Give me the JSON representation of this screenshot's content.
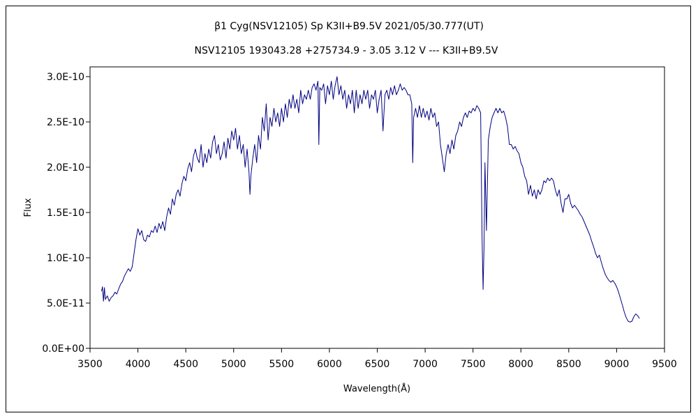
{
  "chart_data": {
    "type": "line",
    "title": "β1 Cyg(NSV12105)     Sp K3II+B9.5V   2021/05/30.777(UT)",
    "subtitle": "NSV12105 193043.28 +275734.9 - 3.05 3.12 V --- K3II+B9.5V",
    "xlabel": "Wavelength(Å)",
    "ylabel": "Flux",
    "xlim": [
      3500,
      9500
    ],
    "ylim": [
      0,
      3e-10
    ],
    "x_ticks": [
      "3500",
      "4000",
      "4500",
      "5000",
      "5500",
      "6000",
      "6500",
      "7000",
      "7500",
      "8000",
      "8500",
      "9000",
      "9500"
    ],
    "y_ticks": [
      "0.0E+00",
      "5.0E-11",
      "1.0E-10",
      "1.5E-10",
      "2.0E-10",
      "2.5E-10",
      "3.0E-10"
    ],
    "grid": false,
    "series": [
      {
        "color": "#000080",
        "points": [
          [
            3620,
            6.3e-11
          ],
          [
            3630,
            6.8e-11
          ],
          [
            3640,
            5.2e-11
          ],
          [
            3650,
            6.7e-11
          ],
          [
            3660,
            5.4e-11
          ],
          [
            3680,
            5.8e-11
          ],
          [
            3700,
            5.2e-11
          ],
          [
            3720,
            5.6e-11
          ],
          [
            3740,
            5.8e-11
          ],
          [
            3760,
            6.2e-11
          ],
          [
            3780,
            6e-11
          ],
          [
            3800,
            6.6e-11
          ],
          [
            3820,
            7.1e-11
          ],
          [
            3840,
            7.4e-11
          ],
          [
            3860,
            8e-11
          ],
          [
            3880,
            8.4e-11
          ],
          [
            3900,
            8.8e-11
          ],
          [
            3920,
            8.5e-11
          ],
          [
            3940,
            9e-11
          ],
          [
            3960,
            1.05e-10
          ],
          [
            3980,
            1.2e-10
          ],
          [
            4000,
            1.32e-10
          ],
          [
            4020,
            1.25e-10
          ],
          [
            4040,
            1.3e-10
          ],
          [
            4060,
            1.2e-10
          ],
          [
            4080,
            1.18e-10
          ],
          [
            4100,
            1.25e-10
          ],
          [
            4120,
            1.23e-10
          ],
          [
            4140,
            1.3e-10
          ],
          [
            4160,
            1.28e-10
          ],
          [
            4180,
            1.35e-10
          ],
          [
            4200,
            1.28e-10
          ],
          [
            4220,
            1.38e-10
          ],
          [
            4240,
            1.32e-10
          ],
          [
            4260,
            1.4e-10
          ],
          [
            4280,
            1.3e-10
          ],
          [
            4300,
            1.45e-10
          ],
          [
            4320,
            1.55e-10
          ],
          [
            4340,
            1.48e-10
          ],
          [
            4360,
            1.65e-10
          ],
          [
            4380,
            1.58e-10
          ],
          [
            4400,
            1.7e-10
          ],
          [
            4420,
            1.75e-10
          ],
          [
            4440,
            1.68e-10
          ],
          [
            4460,
            1.82e-10
          ],
          [
            4480,
            1.9e-10
          ],
          [
            4500,
            1.85e-10
          ],
          [
            4520,
            1.98e-10
          ],
          [
            4540,
            2.05e-10
          ],
          [
            4560,
            1.95e-10
          ],
          [
            4580,
            2.12e-10
          ],
          [
            4600,
            2.2e-10
          ],
          [
            4620,
            2.1e-10
          ],
          [
            4640,
            2.05e-10
          ],
          [
            4660,
            2.25e-10
          ],
          [
            4680,
            2e-10
          ],
          [
            4700,
            2.15e-10
          ],
          [
            4720,
            2.05e-10
          ],
          [
            4740,
            2.2e-10
          ],
          [
            4760,
            2.1e-10
          ],
          [
            4780,
            2.28e-10
          ],
          [
            4800,
            2.35e-10
          ],
          [
            4820,
            2.15e-10
          ],
          [
            4840,
            2.25e-10
          ],
          [
            4860,
            2.08e-10
          ],
          [
            4880,
            2.15e-10
          ],
          [
            4900,
            2.28e-10
          ],
          [
            4920,
            2.1e-10
          ],
          [
            4940,
            2.32e-10
          ],
          [
            4960,
            2.2e-10
          ],
          [
            4980,
            2.4e-10
          ],
          [
            5000,
            2.3e-10
          ],
          [
            5020,
            2.43e-10
          ],
          [
            5040,
            2.2e-10
          ],
          [
            5060,
            2.35e-10
          ],
          [
            5080,
            2.15e-10
          ],
          [
            5100,
            2.25e-10
          ],
          [
            5120,
            2e-10
          ],
          [
            5140,
            2.2e-10
          ],
          [
            5160,
            1.95e-10
          ],
          [
            5170,
            1.7e-10
          ],
          [
            5180,
            1.9e-10
          ],
          [
            5200,
            2.1e-10
          ],
          [
            5220,
            2.25e-10
          ],
          [
            5240,
            2.05e-10
          ],
          [
            5260,
            2.35e-10
          ],
          [
            5280,
            2.2e-10
          ],
          [
            5300,
            2.55e-10
          ],
          [
            5320,
            2.4e-10
          ],
          [
            5340,
            2.7e-10
          ],
          [
            5360,
            2.3e-10
          ],
          [
            5380,
            2.55e-10
          ],
          [
            5400,
            2.45e-10
          ],
          [
            5420,
            2.65e-10
          ],
          [
            5440,
            2.5e-10
          ],
          [
            5460,
            2.6e-10
          ],
          [
            5480,
            2.45e-10
          ],
          [
            5500,
            2.65e-10
          ],
          [
            5520,
            2.5e-10
          ],
          [
            5540,
            2.7e-10
          ],
          [
            5560,
            2.55e-10
          ],
          [
            5580,
            2.75e-10
          ],
          [
            5600,
            2.65e-10
          ],
          [
            5620,
            2.8e-10
          ],
          [
            5640,
            2.65e-10
          ],
          [
            5660,
            2.75e-10
          ],
          [
            5680,
            2.6e-10
          ],
          [
            5700,
            2.85e-10
          ],
          [
            5720,
            2.7e-10
          ],
          [
            5740,
            2.8e-10
          ],
          [
            5760,
            2.75e-10
          ],
          [
            5780,
            2.85e-10
          ],
          [
            5800,
            2.75e-10
          ],
          [
            5820,
            2.88e-10
          ],
          [
            5840,
            2.92e-10
          ],
          [
            5860,
            2.85e-10
          ],
          [
            5880,
            2.95e-10
          ],
          [
            5890,
            2.25e-10
          ],
          [
            5900,
            2.88e-10
          ],
          [
            5920,
            2.85e-10
          ],
          [
            5940,
            2.92e-10
          ],
          [
            5960,
            2.7e-10
          ],
          [
            5980,
            2.9e-10
          ],
          [
            6000,
            2.8e-10
          ],
          [
            6020,
            2.95e-10
          ],
          [
            6040,
            2.75e-10
          ],
          [
            6060,
            2.9e-10
          ],
          [
            6080,
            3e-10
          ],
          [
            6100,
            2.8e-10
          ],
          [
            6120,
            2.9e-10
          ],
          [
            6140,
            2.75e-10
          ],
          [
            6160,
            2.85e-10
          ],
          [
            6180,
            2.65e-10
          ],
          [
            6200,
            2.8e-10
          ],
          [
            6220,
            2.7e-10
          ],
          [
            6240,
            2.85e-10
          ],
          [
            6260,
            2.6e-10
          ],
          [
            6280,
            2.85e-10
          ],
          [
            6300,
            2.65e-10
          ],
          [
            6320,
            2.8e-10
          ],
          [
            6340,
            2.7e-10
          ],
          [
            6360,
            2.85e-10
          ],
          [
            6380,
            2.75e-10
          ],
          [
            6400,
            2.85e-10
          ],
          [
            6420,
            2.65e-10
          ],
          [
            6440,
            2.8e-10
          ],
          [
            6460,
            2.75e-10
          ],
          [
            6480,
            2.85e-10
          ],
          [
            6500,
            2.6e-10
          ],
          [
            6520,
            2.75e-10
          ],
          [
            6540,
            2.85e-10
          ],
          [
            6560,
            2.4e-10
          ],
          [
            6580,
            2.8e-10
          ],
          [
            6600,
            2.85e-10
          ],
          [
            6620,
            2.75e-10
          ],
          [
            6640,
            2.88e-10
          ],
          [
            6660,
            2.8e-10
          ],
          [
            6680,
            2.9e-10
          ],
          [
            6700,
            2.8e-10
          ],
          [
            6720,
            2.85e-10
          ],
          [
            6740,
            2.92e-10
          ],
          [
            6760,
            2.85e-10
          ],
          [
            6780,
            2.88e-10
          ],
          [
            6800,
            2.85e-10
          ],
          [
            6820,
            2.8e-10
          ],
          [
            6840,
            2.8e-10
          ],
          [
            6860,
            2.7e-10
          ],
          [
            6870,
            2.05e-10
          ],
          [
            6880,
            2.55e-10
          ],
          [
            6900,
            2.65e-10
          ],
          [
            6920,
            2.55e-10
          ],
          [
            6940,
            2.68e-10
          ],
          [
            6960,
            2.55e-10
          ],
          [
            6980,
            2.65e-10
          ],
          [
            7000,
            2.55e-10
          ],
          [
            7020,
            2.62e-10
          ],
          [
            7040,
            2.52e-10
          ],
          [
            7060,
            2.65e-10
          ],
          [
            7080,
            2.55e-10
          ],
          [
            7100,
            2.6e-10
          ],
          [
            7120,
            2.45e-10
          ],
          [
            7140,
            2.5e-10
          ],
          [
            7160,
            2.25e-10
          ],
          [
            7180,
            2.1e-10
          ],
          [
            7200,
            1.95e-10
          ],
          [
            7220,
            2.15e-10
          ],
          [
            7240,
            2.25e-10
          ],
          [
            7260,
            2.15e-10
          ],
          [
            7280,
            2.3e-10
          ],
          [
            7300,
            2.2e-10
          ],
          [
            7320,
            2.35e-10
          ],
          [
            7340,
            2.4e-10
          ],
          [
            7360,
            2.5e-10
          ],
          [
            7380,
            2.45e-10
          ],
          [
            7400,
            2.55e-10
          ],
          [
            7420,
            2.6e-10
          ],
          [
            7440,
            2.55e-10
          ],
          [
            7460,
            2.62e-10
          ],
          [
            7480,
            2.6e-10
          ],
          [
            7500,
            2.65e-10
          ],
          [
            7520,
            2.62e-10
          ],
          [
            7540,
            2.68e-10
          ],
          [
            7560,
            2.65e-10
          ],
          [
            7580,
            2.6e-10
          ],
          [
            7595,
            1.2e-10
          ],
          [
            7605,
            6.5e-11
          ],
          [
            7615,
            1.1e-10
          ],
          [
            7625,
            2.05e-10
          ],
          [
            7640,
            1.3e-10
          ],
          [
            7660,
            2.3e-10
          ],
          [
            7680,
            2.45e-10
          ],
          [
            7700,
            2.55e-10
          ],
          [
            7720,
            2.6e-10
          ],
          [
            7740,
            2.65e-10
          ],
          [
            7760,
            2.6e-10
          ],
          [
            7780,
            2.65e-10
          ],
          [
            7800,
            2.6e-10
          ],
          [
            7820,
            2.62e-10
          ],
          [
            7840,
            2.55e-10
          ],
          [
            7860,
            2.45e-10
          ],
          [
            7880,
            2.25e-10
          ],
          [
            7900,
            2.25e-10
          ],
          [
            7920,
            2.2e-10
          ],
          [
            7940,
            2.23e-10
          ],
          [
            7960,
            2.18e-10
          ],
          [
            7980,
            2.15e-10
          ],
          [
            8000,
            2.05e-10
          ],
          [
            8020,
            2e-10
          ],
          [
            8040,
            1.9e-10
          ],
          [
            8060,
            1.85e-10
          ],
          [
            8080,
            1.7e-10
          ],
          [
            8100,
            1.8e-10
          ],
          [
            8120,
            1.68e-10
          ],
          [
            8140,
            1.75e-10
          ],
          [
            8160,
            1.65e-10
          ],
          [
            8180,
            1.75e-10
          ],
          [
            8200,
            1.7e-10
          ],
          [
            8220,
            1.75e-10
          ],
          [
            8240,
            1.85e-10
          ],
          [
            8260,
            1.83e-10
          ],
          [
            8280,
            1.88e-10
          ],
          [
            8300,
            1.85e-10
          ],
          [
            8320,
            1.88e-10
          ],
          [
            8340,
            1.85e-10
          ],
          [
            8360,
            1.75e-10
          ],
          [
            8380,
            1.68e-10
          ],
          [
            8400,
            1.75e-10
          ],
          [
            8420,
            1.6e-10
          ],
          [
            8440,
            1.5e-10
          ],
          [
            8460,
            1.65e-10
          ],
          [
            8480,
            1.65e-10
          ],
          [
            8500,
            1.7e-10
          ],
          [
            8520,
            1.6e-10
          ],
          [
            8540,
            1.55e-10
          ],
          [
            8560,
            1.58e-10
          ],
          [
            8580,
            1.55e-10
          ],
          [
            8600,
            1.52e-10
          ],
          [
            8620,
            1.48e-10
          ],
          [
            8640,
            1.45e-10
          ],
          [
            8660,
            1.4e-10
          ],
          [
            8680,
            1.35e-10
          ],
          [
            8700,
            1.3e-10
          ],
          [
            8720,
            1.25e-10
          ],
          [
            8740,
            1.18e-10
          ],
          [
            8760,
            1.12e-10
          ],
          [
            8780,
            1.05e-10
          ],
          [
            8800,
            1e-10
          ],
          [
            8820,
            1.03e-10
          ],
          [
            8840,
            9.5e-11
          ],
          [
            8860,
            8.8e-11
          ],
          [
            8880,
            8.2e-11
          ],
          [
            8900,
            7.8e-11
          ],
          [
            8920,
            7.5e-11
          ],
          [
            8940,
            7.3e-11
          ],
          [
            8960,
            7.5e-11
          ],
          [
            8980,
            7.2e-11
          ],
          [
            9000,
            6.8e-11
          ],
          [
            9020,
            6.2e-11
          ],
          [
            9040,
            5.5e-11
          ],
          [
            9060,
            4.8e-11
          ],
          [
            9080,
            4e-11
          ],
          [
            9100,
            3.4e-11
          ],
          [
            9120,
            3e-11
          ],
          [
            9140,
            2.9e-11
          ],
          [
            9160,
            3e-11
          ],
          [
            9180,
            3.5e-11
          ],
          [
            9200,
            3.8e-11
          ],
          [
            9220,
            3.6e-11
          ],
          [
            9240,
            3.3e-11
          ]
        ]
      }
    ]
  }
}
